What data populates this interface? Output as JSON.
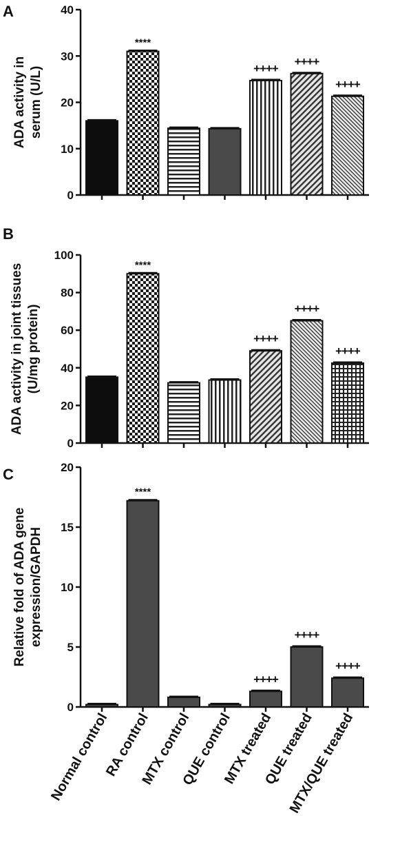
{
  "chart_data": [
    {
      "type": "bar",
      "panel": "A",
      "ylabel_lines": [
        "ADA activity in",
        "serum (U/L)"
      ],
      "ylim": [
        0,
        40
      ],
      "yticks": [
        "0",
        "10",
        "20",
        "30",
        "40"
      ],
      "categories": [
        "Normal control",
        "RA control",
        "MTX control",
        "QUE control",
        "MTX treated",
        "QUE treated",
        "MTX/QUE treated"
      ],
      "values": [
        16.0,
        31.0,
        14.4,
        14.3,
        24.7,
        26.2,
        21.3
      ],
      "significance": [
        "",
        "****",
        "",
        "",
        "++++",
        "++++",
        "++++"
      ],
      "patterns": [
        "solid",
        "dots",
        "hlines",
        "dark",
        "vlines",
        "diag",
        "diag-fine"
      ]
    },
    {
      "type": "bar",
      "panel": "B",
      "ylabel_lines": [
        "ADA activity in joint tissues",
        "(U/mg protein)"
      ],
      "ylim": [
        0,
        100
      ],
      "yticks": [
        "0",
        "20",
        "40",
        "60",
        "80",
        "100"
      ],
      "categories": [
        "Normal control",
        "RA control",
        "MTX control",
        "QUE control",
        "MTX treated",
        "QUE treated",
        "MTX/QUE treated"
      ],
      "values": [
        35.0,
        90.0,
        32.0,
        33.5,
        49.0,
        65.0,
        42.5
      ],
      "significance": [
        "",
        "****",
        "",
        "",
        "++++",
        "++++",
        "++++"
      ],
      "patterns": [
        "solid",
        "dots",
        "hlines",
        "vlines",
        "diag",
        "diag-fine",
        "grid"
      ]
    },
    {
      "type": "bar",
      "panel": "C",
      "ylabel_lines": [
        "Relative fold of ADA gene",
        "expression/GAPDH"
      ],
      "ylim": [
        0,
        20
      ],
      "yticks": [
        "0",
        "5",
        "10",
        "15",
        "20"
      ],
      "categories": [
        "Normal control",
        "RA control",
        "MTX control",
        "QUE control",
        "MTX treated",
        "QUE treated",
        "MTX/QUE treated"
      ],
      "values": [
        0.2,
        17.2,
        0.8,
        0.2,
        1.3,
        5.0,
        2.4
      ],
      "significance": [
        "",
        "****",
        "",
        "",
        "++++",
        "++++",
        "++++"
      ],
      "patterns": [
        "dark",
        "dark",
        "dark",
        "dark",
        "dark",
        "dark",
        "dark"
      ]
    }
  ]
}
